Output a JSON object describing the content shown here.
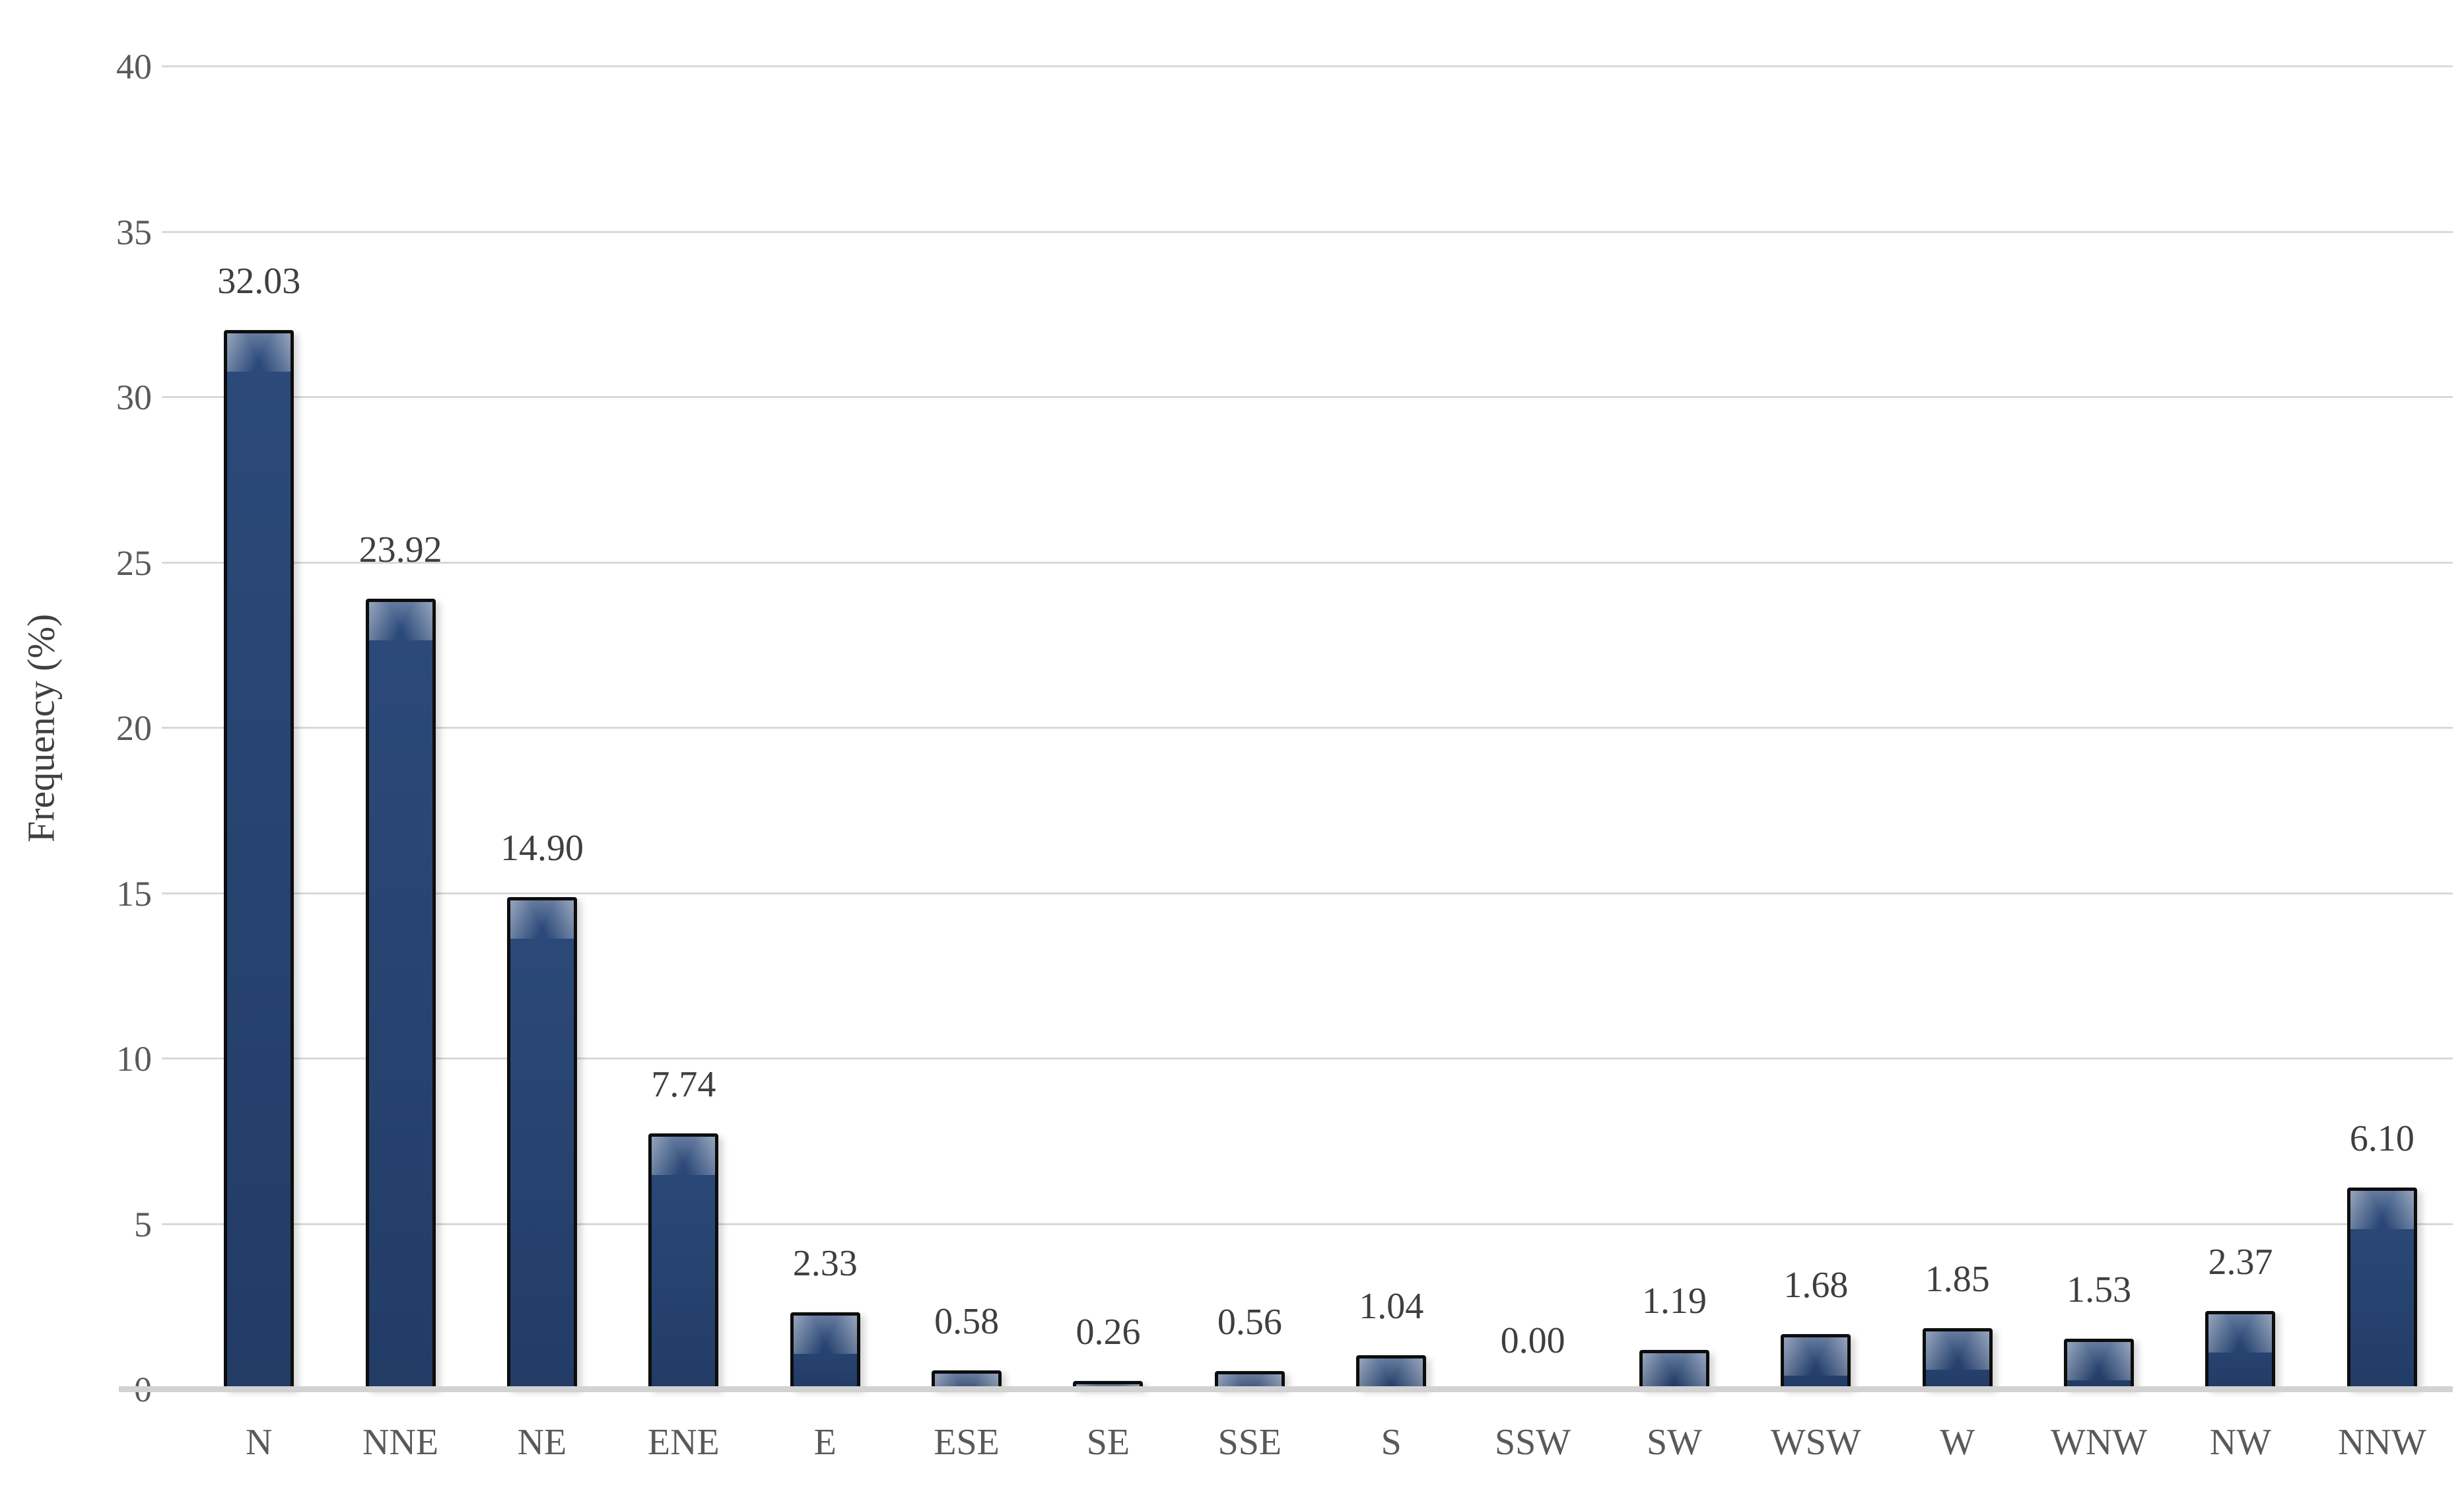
{
  "chart_data": {
    "type": "bar",
    "title": "",
    "xlabel": "",
    "ylabel": "Frequency (%)",
    "categories": [
      "N",
      "NNE",
      "NE",
      "ENE",
      "E",
      "ESE",
      "SE",
      "SSE",
      "S",
      "SSW",
      "SW",
      "WSW",
      "W",
      "WNW",
      "NW",
      "NNW"
    ],
    "values": [
      32.03,
      23.92,
      14.9,
      7.74,
      2.33,
      0.58,
      0.26,
      0.56,
      1.04,
      0.0,
      1.19,
      1.68,
      1.85,
      1.53,
      2.37,
      6.1
    ],
    "value_labels": [
      "32.03",
      "23.92",
      "14.90",
      "7.74",
      "2.33",
      "0.58",
      "0.26",
      "0.56",
      "1.04",
      "0.00",
      "1.19",
      "1.68",
      "1.85",
      "1.53",
      "2.37",
      "6.10"
    ],
    "ylim": [
      0,
      40
    ],
    "yticks": [
      0,
      5,
      10,
      15,
      20,
      25,
      30,
      35,
      40
    ],
    "grid": "horizontal-only",
    "legend": "none",
    "colors": {
      "bar_fill_top": "#2c4a7a",
      "bar_fill_bottom": "#223c66",
      "bar_highlight": "rgba(255,255,255,0.5)",
      "bar_border": "#0d0d0d",
      "gridline": "#d9d9d9",
      "axis_line": "#d2d2d2",
      "tick_text": "#595959",
      "value_text": "#3f3f3f",
      "axis_title_text": "#404040"
    }
  }
}
